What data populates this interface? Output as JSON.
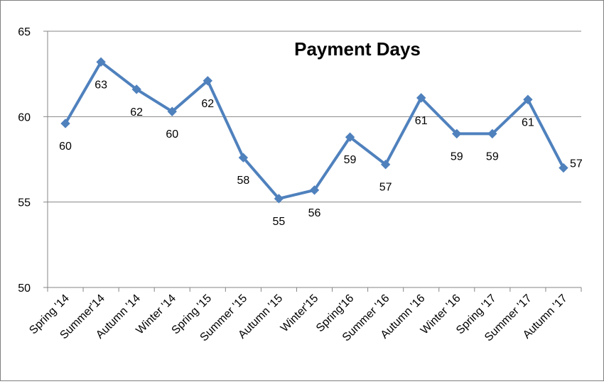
{
  "chart_data": {
    "type": "line",
    "title": "Payment Days",
    "xlabel": "",
    "ylabel": "",
    "categories": [
      "Spring '14",
      "Summer'14",
      "Autumn '14",
      "Winter '14",
      "Spring '15",
      "Summer '15",
      "Autumn '15",
      "Winter'15",
      "Spring'16",
      "Summer '16",
      "Autumn '16",
      "Winter '16",
      "Spring '17",
      "Summer '17",
      "Autumn  '17"
    ],
    "series": [
      {
        "color": "#4f81bd",
        "values": [
          59.6,
          63.2,
          61.6,
          60.3,
          62.1,
          57.6,
          55.2,
          55.7,
          58.8,
          57.2,
          61.1,
          59.0,
          59.0,
          61.0,
          57.0
        ],
        "labels": [
          "60",
          "63",
          "62",
          "60",
          "62",
          "58",
          "55",
          "56",
          "59",
          "57",
          "61",
          "59",
          "59",
          "61",
          "57"
        ]
      }
    ],
    "ylim": [
      50,
      65
    ],
    "yticks": [
      50,
      55,
      60,
      65
    ],
    "grid": true,
    "legend": "none"
  }
}
